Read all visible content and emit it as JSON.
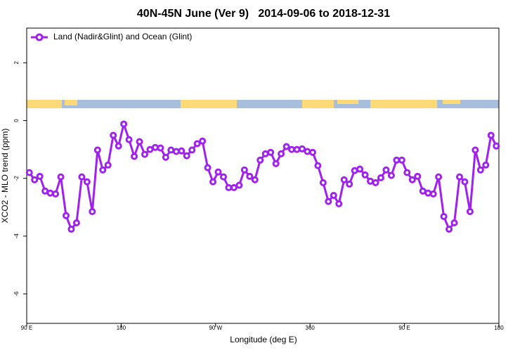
{
  "chart_data": {
    "type": "line",
    "title": "40N-45N June (Ver 9)   2014-09-06 to 2018-12-31",
    "x_label": "Longitude (deg E)",
    "y_label": "XCO2 - MLO trend (ppm)",
    "legend": "top-left",
    "x": [
      92.5,
      97.5,
      102.5,
      107.5,
      112.5,
      117.5,
      122.5,
      127.5,
      132.5,
      137.5,
      142.5,
      147.5,
      152.5,
      157.5,
      162.5,
      167.5,
      172.5,
      177.5,
      182.5,
      187.5,
      192.5,
      197.5,
      202.5,
      207.5,
      212.5,
      217.5,
      222.5,
      227.5,
      232.5,
      237.5,
      242.5,
      247.5,
      252.5,
      257.5,
      262.5,
      267.5,
      272.5,
      277.5,
      282.5,
      287.5,
      292.5,
      297.5,
      302.5,
      307.5,
      312.5,
      317.5,
      322.5,
      327.5,
      332.5,
      337.5,
      342.5,
      347.5,
      352.5,
      357.5,
      362.5,
      367.5,
      372.5,
      377.5,
      382.5,
      387.5,
      392.5,
      397.5,
      402.5,
      407.5,
      412.5,
      417.5,
      422.5,
      427.5,
      432.5,
      437.5,
      442.5,
      447.5,
      452.5,
      457.5,
      462.5,
      467.5,
      472.5,
      477.5,
      482.5,
      487.5,
      492.5,
      497.5,
      502.5,
      507.5,
      512.5,
      517.5,
      522.5,
      527.5,
      532.5,
      537.5
    ],
    "series": [
      {
        "name": "Land (Nadir&Glint) and Ocean (Glint)",
        "color": "#a020f0",
        "values": [
          -1.8,
          -2.05,
          -1.93,
          -2.44,
          -2.51,
          -2.54,
          -1.95,
          -3.29,
          -3.76,
          -3.54,
          -1.95,
          -2.12,
          -3.15,
          -1.02,
          -1.71,
          -1.54,
          -0.51,
          -0.88,
          -0.12,
          -0.66,
          -1.24,
          -0.73,
          -1.17,
          -1.0,
          -0.93,
          -0.95,
          -1.27,
          -1.02,
          -1.07,
          -1.05,
          -1.22,
          -1.02,
          -0.8,
          -0.71,
          -1.63,
          -2.12,
          -1.78,
          -1.95,
          -2.32,
          -2.32,
          -2.24,
          -1.71,
          -1.93,
          -2.05,
          -1.37,
          -1.15,
          -1.1,
          -1.49,
          -1.15,
          -0.9,
          -1.0,
          -1.0,
          -0.98,
          -1.07,
          -1.1,
          -1.56,
          -2.15,
          -2.8,
          -2.59,
          -2.88,
          -2.05,
          -2.2,
          -1.73,
          -1.68,
          -1.88,
          -2.1,
          -2.15,
          -1.98,
          -1.71,
          -1.9,
          -1.37,
          -1.37,
          -1.8,
          -2.05,
          -1.93,
          -2.44,
          -2.51,
          -2.54,
          -1.95,
          -3.32,
          -3.76,
          -3.54,
          -1.95,
          -2.12,
          -3.15,
          -1.02,
          -1.71,
          -1.54,
          -0.51,
          -0.88
        ]
      }
    ],
    "xlim": [
      90,
      540
    ],
    "xticks": [
      {
        "value": 90,
        "label": "90 E"
      },
      180,
      {
        "value": 270,
        "label": "90 W"
      },
      360,
      {
        "value": 450,
        "label": "90 E"
      },
      {
        "value": 540,
        "label": "180"
      }
    ],
    "ylim": [
      -7.02,
      3.2
    ],
    "yticks": [
      -6,
      -4,
      -2,
      0,
      2
    ]
  }
}
